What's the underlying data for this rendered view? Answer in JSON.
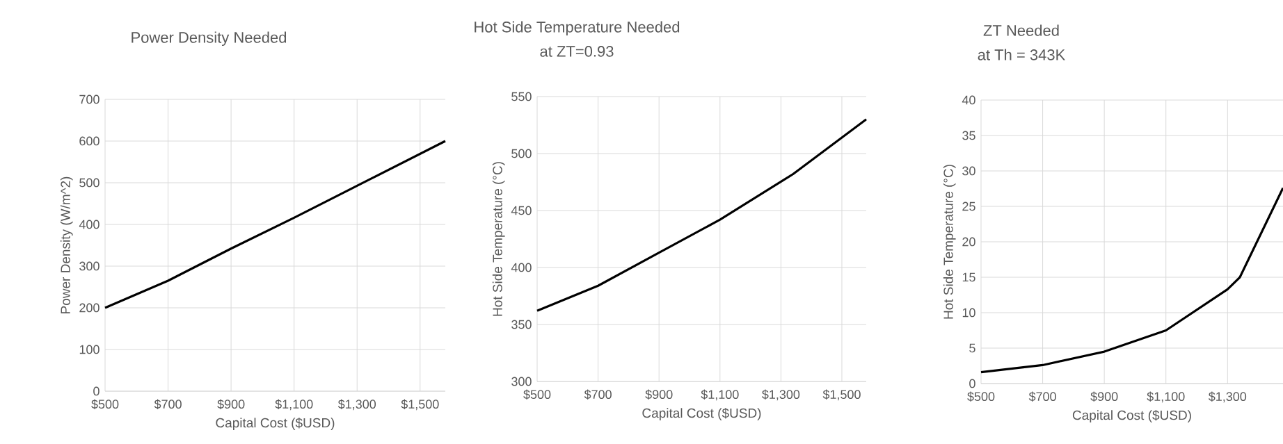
{
  "chart_data": [
    {
      "type": "line",
      "title": "Power Density Needed",
      "xlabel": "Capital Cost ($USD)",
      "ylabel": "Power Density (W/m^2)",
      "x": [
        500,
        700,
        900,
        1100,
        1340,
        1580
      ],
      "series": [
        {
          "color": "#000000",
          "values": [
            200,
            265,
            342,
            416,
            508,
            600
          ]
        }
      ],
      "xlim": [
        500,
        1580
      ],
      "ylim": [
        0,
        700
      ],
      "xticks": [
        {
          "value": 500,
          "label": "$500"
        },
        {
          "value": 700,
          "label": "$700"
        },
        {
          "value": 900,
          "label": "$900"
        },
        {
          "value": 1100,
          "label": "$1,100"
        },
        {
          "value": 1300,
          "label": "$1,300"
        },
        {
          "value": 1500,
          "label": "$1,500"
        }
      ],
      "yticks": [
        0,
        100,
        200,
        300,
        400,
        500,
        600,
        700
      ],
      "grid": true
    },
    {
      "type": "line",
      "title": "Hot Side Temperature Needed",
      "subtitle": "at ZT=0.93",
      "xlabel": "Capital Cost ($USD)",
      "ylabel": "Hot Side Temperature (°C)",
      "x": [
        500,
        700,
        900,
        1100,
        1340,
        1580
      ],
      "series": [
        {
          "color": "#000000",
          "values": [
            362,
            384,
            413,
            442,
            482,
            530
          ]
        }
      ],
      "xlim": [
        500,
        1580
      ],
      "ylim": [
        300,
        550
      ],
      "xticks": [
        {
          "value": 500,
          "label": "$500"
        },
        {
          "value": 700,
          "label": "$700"
        },
        {
          "value": 900,
          "label": "$900"
        },
        {
          "value": 1100,
          "label": "$1,100"
        },
        {
          "value": 1300,
          "label": "$1,300"
        },
        {
          "value": 1500,
          "label": "$1,500"
        }
      ],
      "yticks": [
        300,
        350,
        400,
        450,
        500,
        550
      ],
      "grid": true
    },
    {
      "type": "line",
      "title": "ZT Needed",
      "subtitle": "at Th = 343K",
      "xlabel": "Capital Cost ($USD)",
      "ylabel": "Hot Side Temperature (°C)",
      "x": [
        500,
        700,
        900,
        1100,
        1300,
        1340,
        1480
      ],
      "series": [
        {
          "color": "#000000",
          "values": [
            1.6,
            2.6,
            4.5,
            7.5,
            13.3,
            15,
            27.6
          ]
        }
      ],
      "xlim": [
        500,
        1480
      ],
      "ylim": [
        0,
        40
      ],
      "xticks": [
        {
          "value": 500,
          "label": "$500"
        },
        {
          "value": 700,
          "label": "$700"
        },
        {
          "value": 900,
          "label": "$900"
        },
        {
          "value": 1100,
          "label": "$1,100"
        },
        {
          "value": 1300,
          "label": "$1,300"
        }
      ],
      "yticks": [
        0,
        5,
        10,
        15,
        20,
        25,
        30,
        35,
        40
      ],
      "grid": true
    }
  ]
}
